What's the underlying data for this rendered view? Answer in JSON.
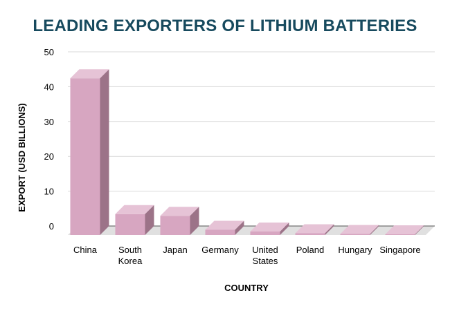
{
  "chart_data": {
    "type": "bar",
    "title": "LEADING EXPORTERS OF LITHIUM BATTERIES",
    "xlabel": "COUNTRY",
    "ylabel": "EXPORT (USD BILLIONS)",
    "categories": [
      [
        "China"
      ],
      [
        "South",
        "Korea"
      ],
      [
        "Japan"
      ],
      [
        "Germany"
      ],
      [
        "United",
        "States"
      ],
      [
        "Poland"
      ],
      [
        "Hungary"
      ],
      [
        "Singapore"
      ]
    ],
    "values": [
      45,
      6,
      5.5,
      1.5,
      1,
      0.5,
      0.3,
      0.2
    ],
    "yticks": [
      "0",
      "10",
      "20",
      "30",
      "40",
      "50"
    ],
    "ylim": [
      0,
      50
    ],
    "grid": true,
    "colors": {
      "bar_front": "#d7a6c1",
      "bar_top": "#e6c3d6",
      "bar_side": "#9c7388",
      "floor": "#e0e0e0",
      "grid": "#d9d9d9",
      "title": "#174a5e"
    }
  }
}
